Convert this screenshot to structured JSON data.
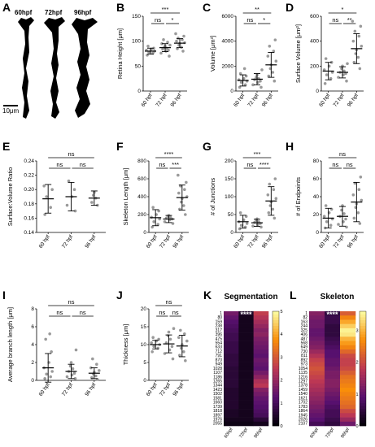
{
  "panel_a": {
    "letter": "A",
    "timepoints": [
      "60hpf",
      "72hpf",
      "96hpf"
    ],
    "scale_bar": "10μm"
  },
  "chart_data": [
    {
      "panel": "B",
      "type": "scatter",
      "title": "",
      "xlabel": "",
      "ylabel": "Retina Height [μm]",
      "categories": [
        "60 hpf",
        "72 hpf",
        "96 hpf"
      ],
      "yticks": [
        0,
        50,
        100,
        150
      ],
      "ylim": [
        0,
        150
      ],
      "series": [
        {
          "points": [
            72,
            76,
            78,
            80,
            82,
            84,
            86,
            90
          ],
          "mean": 80,
          "sd": 6
        },
        {
          "points": [
            70,
            76,
            80,
            82,
            84,
            86,
            88,
            90,
            92,
            95,
            98,
            103
          ],
          "mean": 87,
          "sd": 8
        },
        {
          "points": [
            80,
            85,
            88,
            92,
            95,
            97,
            100,
            103,
            106,
            110,
            115
          ],
          "mean": 96,
          "sd": 9
        }
      ],
      "comparisons": [
        {
          "from": 0,
          "to": 1,
          "label": "ns"
        },
        {
          "from": 1,
          "to": 2,
          "label": "*"
        },
        {
          "from": 0,
          "to": 2,
          "label": "***"
        }
      ]
    },
    {
      "panel": "C",
      "type": "scatter",
      "title": "",
      "xlabel": "",
      "ylabel": "Volume [μm³]",
      "categories": [
        "60 hpf",
        "72 hpf",
        "96 hpf"
      ],
      "yticks": [
        0,
        2000,
        4000,
        6000
      ],
      "ylim": [
        0,
        6000
      ],
      "series": [
        {
          "points": [
            300,
            500,
            700,
            800,
            900,
            1000,
            1200,
            1400,
            1800
          ],
          "mean": 850,
          "sd": 450
        },
        {
          "points": [
            300,
            500,
            700,
            800,
            900,
            1000,
            1100,
            1300,
            1700
          ],
          "mean": 950,
          "sd": 450
        },
        {
          "points": [
            800,
            1200,
            1500,
            1800,
            2100,
            2400,
            2800,
            3200,
            3600,
            4100
          ],
          "mean": 2100,
          "sd": 1000
        }
      ],
      "comparisons": [
        {
          "from": 0,
          "to": 1,
          "label": "ns"
        },
        {
          "from": 1,
          "to": 2,
          "label": "*"
        },
        {
          "from": 0,
          "to": 2,
          "label": "**"
        }
      ]
    },
    {
      "panel": "D",
      "type": "scatter",
      "title": "",
      "xlabel": "",
      "ylabel": "Surface Volume [μm²]",
      "categories": [
        "60 hpf",
        "72 hpf",
        "96 hpf"
      ],
      "yticks": [
        0,
        200,
        400,
        600
      ],
      "ylim": [
        0,
        600
      ],
      "series": [
        {
          "points": [
            60,
            100,
            130,
            150,
            170,
            200,
            230,
            260
          ],
          "mean": 160,
          "sd": 70
        },
        {
          "points": [
            80,
            110,
            130,
            140,
            150,
            160,
            180,
            200,
            220
          ],
          "mean": 150,
          "sd": 45
        },
        {
          "points": [
            180,
            230,
            270,
            300,
            330,
            360,
            400,
            440,
            480,
            520,
            560
          ],
          "mean": 340,
          "sd": 120
        }
      ],
      "comparisons": [
        {
          "from": 0,
          "to": 1,
          "label": "ns"
        },
        {
          "from": 1,
          "to": 2,
          "label": "**"
        },
        {
          "from": 0,
          "to": 2,
          "label": "*"
        }
      ]
    },
    {
      "panel": "E",
      "type": "scatter",
      "title": "",
      "xlabel": "",
      "ylabel": "Surface:Volume Ratio",
      "categories": [
        "60 hpf",
        "72 hpf",
        "96 hpf"
      ],
      "yticks": [
        0.14,
        0.16,
        0.18,
        0.2,
        0.22,
        0.24
      ],
      "ylim": [
        0.14,
        0.24
      ],
      "series": [
        {
          "points": [
            0.165,
            0.175,
            0.19,
            0.2,
            0.205
          ],
          "mean": 0.187,
          "sd": 0.02
        },
        {
          "points": [
            0.17,
            0.178,
            0.19,
            0.2,
            0.212
          ],
          "mean": 0.19,
          "sd": 0.02
        },
        {
          "points": [
            0.178,
            0.182,
            0.188,
            0.192,
            0.196
          ],
          "mean": 0.188,
          "sd": 0.01
        }
      ],
      "comparisons": [
        {
          "from": 0,
          "to": 1,
          "label": "ns"
        },
        {
          "from": 1,
          "to": 2,
          "label": "ns"
        },
        {
          "from": 0,
          "to": 2,
          "label": "ns"
        }
      ]
    },
    {
      "panel": "F",
      "type": "scatter",
      "title": "",
      "xlabel": "",
      "ylabel": "Skeleton Length [μm]",
      "categories": [
        "60 hpf",
        "72 hpf",
        "96 hpf"
      ],
      "yticks": [
        0,
        200,
        400,
        600,
        800
      ],
      "ylim": [
        0,
        800
      ],
      "series": [
        {
          "points": [
            60,
            90,
            120,
            150,
            170,
            200,
            240,
            280
          ],
          "mean": 165,
          "sd": 90
        },
        {
          "points": [
            100,
            120,
            140,
            150,
            160,
            170,
            180,
            190
          ],
          "mean": 150,
          "sd": 40
        },
        {
          "points": [
            200,
            260,
            300,
            340,
            380,
            400,
            440,
            480,
            520,
            560,
            640
          ],
          "mean": 390,
          "sd": 140
        }
      ],
      "comparisons": [
        {
          "from": 0,
          "to": 1,
          "label": "ns"
        },
        {
          "from": 1,
          "to": 2,
          "label": "***"
        },
        {
          "from": 0,
          "to": 2,
          "label": "****"
        }
      ]
    },
    {
      "panel": "G",
      "type": "scatter",
      "title": "",
      "xlabel": "",
      "ylabel": "# of Junctions",
      "categories": [
        "60 hpf",
        "72 hpf",
        "96 hpf"
      ],
      "yticks": [
        0,
        50,
        100,
        150,
        200
      ],
      "ylim": [
        0,
        200
      ],
      "series": [
        {
          "points": [
            10,
            15,
            20,
            25,
            30,
            35,
            45,
            55
          ],
          "mean": 30,
          "sd": 18
        },
        {
          "points": [
            15,
            18,
            22,
            25,
            28,
            30,
            34,
            38
          ],
          "mean": 27,
          "sd": 10
        },
        {
          "points": [
            40,
            55,
            65,
            75,
            85,
            95,
            105,
            120,
            135,
            150
          ],
          "mean": 88,
          "sd": 40
        }
      ],
      "comparisons": [
        {
          "from": 0,
          "to": 1,
          "label": "ns"
        },
        {
          "from": 1,
          "to": 2,
          "label": "****"
        },
        {
          "from": 0,
          "to": 2,
          "label": "***"
        }
      ]
    },
    {
      "panel": "H",
      "type": "scatter",
      "title": "",
      "xlabel": "",
      "ylabel": "# of Endpoints",
      "categories": [
        "60 hpf",
        "72 hpf",
        "96 hpf"
      ],
      "yticks": [
        0,
        20,
        40,
        60,
        80
      ],
      "ylim": [
        0,
        80
      ],
      "series": [
        {
          "points": [
            5,
            8,
            12,
            15,
            18,
            22,
            26,
            30
          ],
          "mean": 16,
          "sd": 11
        },
        {
          "points": [
            6,
            9,
            12,
            15,
            18,
            21,
            25,
            30
          ],
          "mean": 18,
          "sd": 11
        },
        {
          "points": [
            10,
            16,
            22,
            28,
            32,
            36,
            42,
            48,
            55,
            62
          ],
          "mean": 34,
          "sd": 22
        }
      ],
      "comparisons": [
        {
          "from": 0,
          "to": 1,
          "label": "ns"
        },
        {
          "from": 1,
          "to": 2,
          "label": "ns"
        },
        {
          "from": 0,
          "to": 2,
          "label": "ns"
        }
      ]
    },
    {
      "panel": "I",
      "type": "scatter",
      "title": "",
      "xlabel": "",
      "ylabel": "Average branch length [μm]",
      "categories": [
        "60 hpf",
        "72 hpf",
        "96 hpf"
      ],
      "yticks": [
        0,
        2,
        4,
        6,
        8
      ],
      "ylim": [
        0,
        8
      ],
      "series": [
        {
          "points": [
            0.2,
            0.4,
            0.7,
            1.0,
            1.4,
            2.0,
            3.2,
            4.6,
            5.2
          ],
          "mean": 1.4,
          "sd": 1.6
        },
        {
          "points": [
            0.2,
            0.4,
            0.6,
            0.8,
            1.0,
            1.3,
            1.6,
            2.0,
            3.4
          ],
          "mean": 1.0,
          "sd": 0.8
        },
        {
          "points": [
            0.1,
            0.3,
            0.5,
            0.7,
            0.9,
            1.1,
            1.4,
            1.8,
            2.4
          ],
          "mean": 0.8,
          "sd": 0.6
        }
      ],
      "comparisons": [
        {
          "from": 0,
          "to": 1,
          "label": "ns"
        },
        {
          "from": 1,
          "to": 2,
          "label": "ns"
        },
        {
          "from": 0,
          "to": 2,
          "label": "ns"
        }
      ]
    },
    {
      "panel": "J",
      "type": "scatter",
      "title": "",
      "xlabel": "",
      "ylabel": "Thickness [μm]",
      "categories": [
        "60 hpf",
        "72 hpf",
        "96 hpf"
      ],
      "yticks": [
        0,
        5,
        10,
        15,
        20
      ],
      "ylim": [
        0,
        20
      ],
      "series": [
        {
          "points": [
            8,
            9,
            9.5,
            10,
            10.5,
            11,
            11.5,
            12
          ],
          "mean": 10,
          "sd": 1.2
        },
        {
          "points": [
            6,
            7.5,
            8.5,
            9.5,
            10.5,
            11.5,
            12.5,
            13.5,
            14.5
          ],
          "mean": 10.2,
          "sd": 2.5
        },
        {
          "points": [
            5.5,
            7,
            8,
            9,
            10,
            11,
            12,
            13,
            14
          ],
          "mean": 9.6,
          "sd": 3
        }
      ],
      "comparisons": [
        {
          "from": 0,
          "to": 1,
          "label": "ns"
        },
        {
          "from": 1,
          "to": 2,
          "label": "ns"
        },
        {
          "from": 0,
          "to": 2,
          "label": "ns"
        }
      ]
    },
    {
      "panel": "K",
      "type": "heatmap",
      "title": "Segmentation",
      "xlabel": "",
      "ylabel": "",
      "columns": [
        "60hpf",
        "72hpf",
        "96hpf"
      ],
      "row_labels": [
        "1",
        "80",
        "159",
        "238",
        "317",
        "396",
        "475",
        "554",
        "633",
        "712",
        "791",
        "870",
        "949",
        "1028",
        "1107",
        "1186",
        "1265",
        "1344",
        "1423",
        "1502",
        "1581",
        "1660",
        "1739",
        "1818",
        "1897",
        "1976",
        "2055"
      ],
      "significance": "****",
      "colorbar_ticks": [
        0,
        1,
        2,
        3,
        4,
        5
      ],
      "colorbar_range": [
        0,
        5
      ],
      "values": [
        [
          1.6,
          0.4,
          2.6
        ],
        [
          1.4,
          0.3,
          2.4
        ],
        [
          1.2,
          0.3,
          2.2
        ],
        [
          1.1,
          0.3,
          2.0
        ],
        [
          1.0,
          0.3,
          1.8
        ],
        [
          0.9,
          0.3,
          1.9
        ],
        [
          0.9,
          0.3,
          1.7
        ],
        [
          0.8,
          0.3,
          1.6
        ],
        [
          0.8,
          0.3,
          1.5
        ],
        [
          0.8,
          0.3,
          1.4
        ],
        [
          0.7,
          0.3,
          1.3
        ],
        [
          0.7,
          0.3,
          1.5
        ],
        [
          0.7,
          0.3,
          1.4
        ],
        [
          0.6,
          0.3,
          1.3
        ],
        [
          0.6,
          0.3,
          1.6
        ],
        [
          0.6,
          0.3,
          1.9
        ],
        [
          0.6,
          0.3,
          2.3
        ],
        [
          0.6,
          0.3,
          2.5
        ],
        [
          0.5,
          0.3,
          1.8
        ],
        [
          0.5,
          0.3,
          1.6
        ],
        [
          0.5,
          0.3,
          1.4
        ],
        [
          0.5,
          0.3,
          1.3
        ],
        [
          0.5,
          0.3,
          1.2
        ],
        [
          0.4,
          0.3,
          1.1
        ],
        [
          0.4,
          0.3,
          1.0
        ],
        [
          0.3,
          0.3,
          0.6
        ],
        [
          0.2,
          0.2,
          0.3
        ]
      ]
    },
    {
      "panel": "L",
      "type": "heatmap",
      "title": "Skeleton",
      "xlabel": "",
      "ylabel": "",
      "columns": [
        "60hpf",
        "72hpf",
        "96hpf"
      ],
      "row_labels": [
        "1",
        "82",
        "163",
        "244",
        "325",
        "406",
        "487",
        "568",
        "649",
        "730",
        "811",
        "892",
        "973",
        "1054",
        "1135",
        "1216",
        "1297",
        "1378",
        "1459",
        "1540",
        "1621",
        "1702",
        "1783",
        "1864",
        "1945",
        "2026",
        "2107"
      ],
      "significance": "****",
      "colorbar_ticks": [
        0,
        1,
        2,
        3
      ],
      "colorbar_range": [
        0,
        3.6
      ],
      "values": [
        [
          1.3,
          0.5,
          2.2
        ],
        [
          1.2,
          0.6,
          2.6
        ],
        [
          1.1,
          0.6,
          2.9
        ],
        [
          1.1,
          0.5,
          3.2
        ],
        [
          1.0,
          0.5,
          3.5
        ],
        [
          1.0,
          0.5,
          3.4
        ],
        [
          1.1,
          0.6,
          3.0
        ],
        [
          1.2,
          0.7,
          2.8
        ],
        [
          1.3,
          0.8,
          2.6
        ],
        [
          1.5,
          0.9,
          2.3
        ],
        [
          1.7,
          0.9,
          2.0
        ],
        [
          1.9,
          1.0,
          1.9
        ],
        [
          2.0,
          1.0,
          1.9
        ],
        [
          2.1,
          1.1,
          2.0
        ],
        [
          2.0,
          1.2,
          2.2
        ],
        [
          1.9,
          1.2,
          2.4
        ],
        [
          1.8,
          1.3,
          2.5
        ],
        [
          1.7,
          1.3,
          2.6
        ],
        [
          1.6,
          1.2,
          2.7
        ],
        [
          1.5,
          1.1,
          2.6
        ],
        [
          1.4,
          1.0,
          2.5
        ],
        [
          1.3,
          0.9,
          2.4
        ],
        [
          1.2,
          0.8,
          2.3
        ],
        [
          1.1,
          0.7,
          2.0
        ],
        [
          1.0,
          0.7,
          1.8
        ],
        [
          0.9,
          0.6,
          1.5
        ],
        [
          0.7,
          0.5,
          1.1
        ]
      ]
    }
  ]
}
